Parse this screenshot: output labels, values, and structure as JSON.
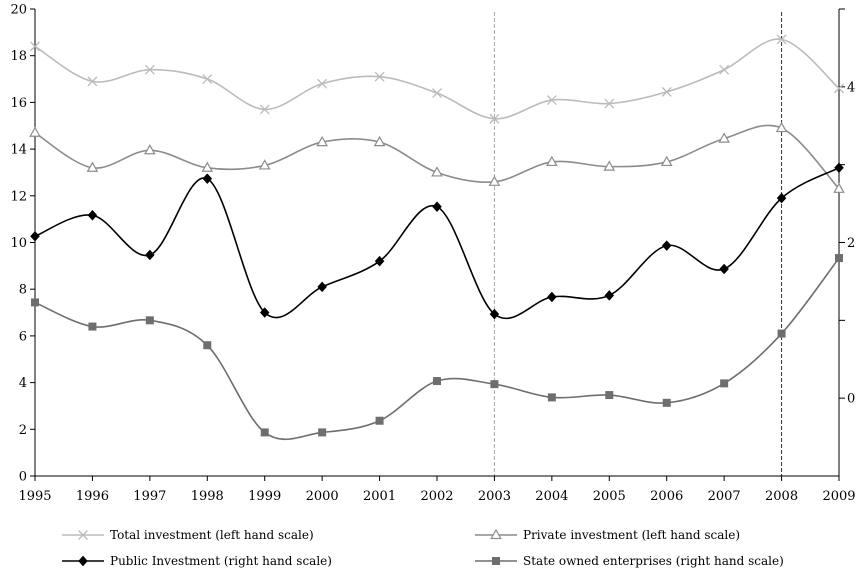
{
  "chart_data": {
    "type": "line",
    "x": [
      1995,
      1996,
      1997,
      1998,
      1999,
      2000,
      2001,
      2002,
      2003,
      2004,
      2005,
      2006,
      2007,
      2008,
      2009
    ],
    "left_axis": {
      "ylim": [
        0,
        20
      ],
      "ticks": [
        0,
        2,
        4,
        6,
        8,
        10,
        12,
        14,
        16,
        18,
        20
      ]
    },
    "right_axis": {
      "ylim": [
        -1,
        5
      ],
      "labeled_ticks": [
        0,
        2,
        4
      ],
      "unlabeled_ticks": [
        1,
        3,
        5
      ]
    },
    "vertical_markers": [
      {
        "x": 2003,
        "color": "#aaaaaa"
      },
      {
        "x": 2008,
        "color": "#333333"
      }
    ],
    "grid": false,
    "legend_position": "bottom",
    "series": [
      {
        "name": "Total investment (left hand scale)",
        "axis": "left",
        "marker": "x",
        "color": "#bbbbbb",
        "values": [
          18.4,
          16.9,
          17.4,
          17.0,
          15.7,
          16.8,
          17.1,
          16.4,
          15.3,
          16.1,
          15.95,
          16.45,
          17.4,
          18.7,
          16.6
        ]
      },
      {
        "name": "Private investment (left hand scale)",
        "axis": "left",
        "marker": "triangle",
        "color": "#8c8c8c",
        "values": [
          14.7,
          13.2,
          13.95,
          13.2,
          13.3,
          14.3,
          14.3,
          13.0,
          12.6,
          13.45,
          13.25,
          13.45,
          14.45,
          14.9,
          12.3
        ]
      },
      {
        "name": "Public Investment (right hand scale)",
        "axis": "right",
        "marker": "diamond",
        "color": "#000000",
        "values": [
          2.08,
          2.35,
          1.84,
          2.82,
          1.1,
          1.43,
          1.76,
          2.46,
          1.08,
          1.3,
          1.32,
          1.96,
          1.66,
          2.57,
          2.96
        ]
      },
      {
        "name": "State owned enterprises (right hand scale)",
        "axis": "right",
        "marker": "square",
        "color": "#6e6e6e",
        "values": [
          1.23,
          0.92,
          1.0,
          0.68,
          -0.44,
          -0.44,
          -0.29,
          0.22,
          0.18,
          0.01,
          0.04,
          -0.06,
          0.19,
          0.83,
          1.8
        ]
      }
    ]
  }
}
